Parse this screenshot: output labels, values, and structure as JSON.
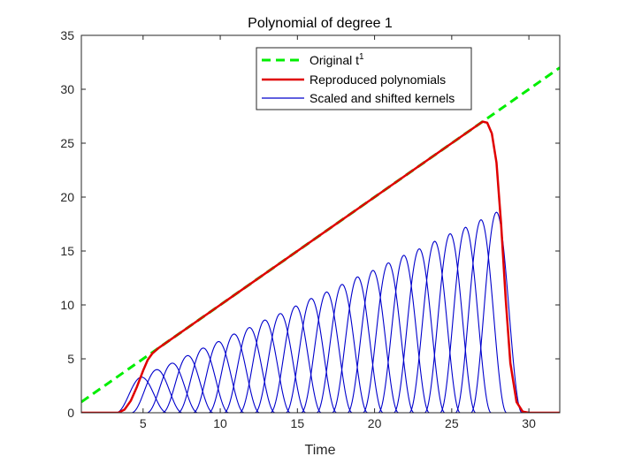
{
  "chart_data": {
    "type": "line",
    "title": "Polynomial of degree 1",
    "xlabel": "Time",
    "ylabel": "",
    "xlim": [
      1,
      32
    ],
    "ylim": [
      0,
      35
    ],
    "xticks": [
      5,
      10,
      15,
      20,
      25,
      30
    ],
    "yticks": [
      0,
      5,
      10,
      15,
      20,
      25,
      30,
      35
    ],
    "grid": false,
    "legend_position": "top-center",
    "series": [
      {
        "name": "Original t",
        "name_superscript": "1",
        "style": "dashed",
        "color": "#00ee00",
        "x": [
          1,
          32
        ],
        "y": [
          1,
          32
        ]
      },
      {
        "name": "Reproduced polynomials",
        "style": "solid",
        "color": "#e00000",
        "x": [
          1,
          3.4,
          3.8,
          4.2,
          4.6,
          5.0,
          5.3,
          5.6,
          6.0,
          10,
          15,
          20,
          25,
          27.0,
          27.3,
          27.6,
          27.9,
          28.2,
          28.5,
          28.8,
          29.2,
          29.6,
          30,
          32
        ],
        "y": [
          0,
          0,
          0.3,
          1.1,
          2.4,
          3.9,
          4.9,
          5.5,
          6.0,
          10,
          15,
          20,
          25,
          27.0,
          26.9,
          25.9,
          23.2,
          17.5,
          10.5,
          4.6,
          1.0,
          0.1,
          0,
          0
        ]
      },
      {
        "name": "Scaled and shifted kernels",
        "style": "solid",
        "color": "#0000cc",
        "kernel_width": 1.65,
        "centers": [
          4.9,
          5.9,
          6.9,
          7.9,
          8.9,
          9.9,
          10.9,
          11.9,
          12.9,
          13.9,
          14.9,
          15.9,
          16.9,
          17.9,
          18.9,
          19.9,
          20.9,
          21.9,
          22.9,
          23.9,
          24.9,
          25.9,
          26.9,
          27.9
        ],
        "peaks": [
          3.3,
          4.0,
          4.6,
          5.3,
          6.0,
          6.6,
          7.3,
          7.9,
          8.6,
          9.2,
          9.9,
          10.6,
          11.2,
          11.9,
          12.6,
          13.2,
          13.9,
          14.6,
          15.2,
          15.9,
          16.6,
          17.2,
          17.9,
          18.6
        ]
      }
    ]
  }
}
